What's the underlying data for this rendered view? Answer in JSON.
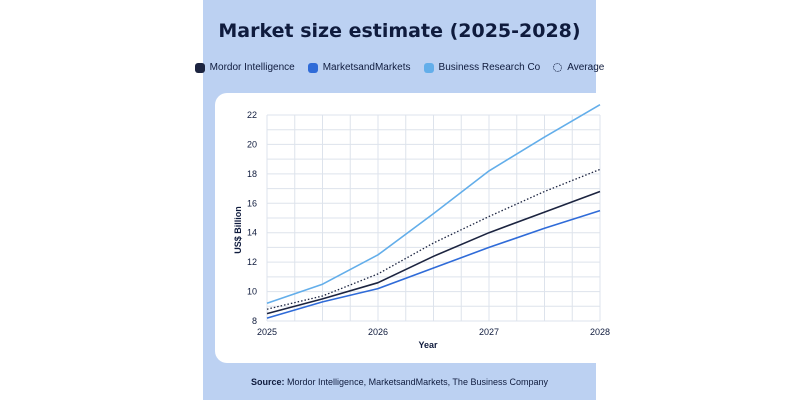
{
  "title": "Market size estimate (2025-2028)",
  "source_label": "Source:",
  "source_text": "Mordor Intelligence, MarketsandMarkets, The Business Company",
  "colors": {
    "panel_bg": "#bcd1f2",
    "mordor": "#1c2440",
    "marketsandmarkets": "#2f6bd8",
    "business_research": "#63aeea",
    "average": "#1c2440"
  },
  "chart_data": {
    "type": "line",
    "title": "Market size estimate (2025-2028)",
    "xlabel": "Year",
    "ylabel": "US$ Billion",
    "x_ticks": [
      "2025",
      "2026",
      "2027",
      "2028"
    ],
    "y_ticks": [
      8,
      10,
      12,
      14,
      16,
      18,
      20,
      22
    ],
    "ylim": [
      8,
      22
    ],
    "xlim": [
      2025,
      2028
    ],
    "grid": true,
    "legend_position": "top",
    "series": [
      {
        "name": "Mordor Intelligence",
        "color": "#1c2440",
        "style": "solid",
        "x": [
          2025,
          2025.5,
          2026,
          2026.5,
          2027,
          2027.5,
          2028
        ],
        "y": [
          8.5,
          9.5,
          10.6,
          12.4,
          14.0,
          15.4,
          16.8
        ]
      },
      {
        "name": "MarketsandMarkets",
        "color": "#2f6bd8",
        "style": "solid",
        "x": [
          2025,
          2025.5,
          2026,
          2026.5,
          2027,
          2027.5,
          2028
        ],
        "y": [
          8.2,
          9.3,
          10.2,
          11.6,
          13.0,
          14.3,
          15.5
        ]
      },
      {
        "name": "Business Research Co",
        "color": "#63aeea",
        "style": "solid",
        "x": [
          2025,
          2025.5,
          2026,
          2026.5,
          2027,
          2027.5,
          2028
        ],
        "y": [
          9.2,
          10.5,
          12.5,
          15.3,
          18.2,
          20.5,
          22.7
        ]
      },
      {
        "name": "Average",
        "color": "#1c2440",
        "style": "dotted",
        "x": [
          2025,
          2025.5,
          2026,
          2026.5,
          2027,
          2027.5,
          2028
        ],
        "y": [
          8.8,
          9.7,
          11.2,
          13.3,
          15.1,
          16.8,
          18.3
        ]
      }
    ]
  }
}
